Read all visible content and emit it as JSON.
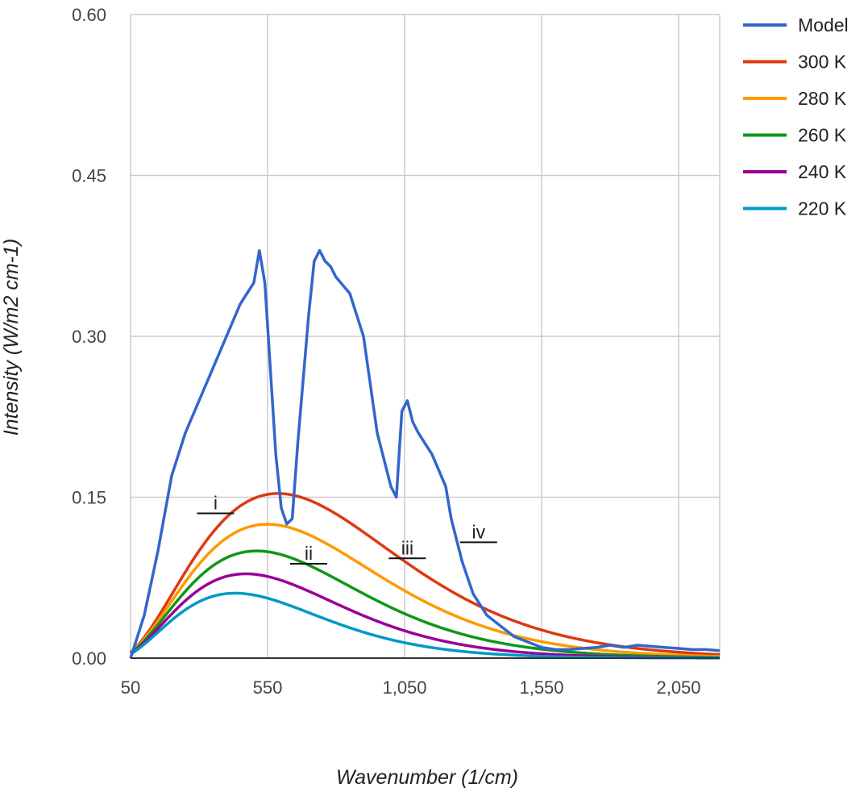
{
  "chart_data": {
    "type": "line",
    "title": "",
    "xlabel": "Wavenumber (1/cm)",
    "ylabel": "Intensity (W/m2 cm-1)",
    "xlim": [
      50,
      2200
    ],
    "ylim": [
      0,
      0.6
    ],
    "x_ticks": [
      "50",
      "550",
      "1,050",
      "1,550",
      "2,050"
    ],
    "y_ticks": [
      "0.00",
      "0.15",
      "0.30",
      "0.45",
      "0.60"
    ],
    "grid": true,
    "legend_position": "top-right",
    "series": [
      {
        "name": "Model",
        "color": "#3366cc",
        "kind": "spectrum",
        "x": [
          50,
          100,
          150,
          200,
          250,
          300,
          350,
          400,
          450,
          500,
          520,
          540,
          560,
          580,
          600,
          620,
          640,
          660,
          680,
          700,
          720,
          740,
          760,
          780,
          800,
          850,
          900,
          950,
          1000,
          1020,
          1040,
          1060,
          1080,
          1100,
          1150,
          1200,
          1220,
          1240,
          1260,
          1300,
          1350,
          1400,
          1450,
          1500,
          1550,
          1600,
          1650,
          1700,
          1750,
          1800,
          1850,
          1900,
          1950,
          2000,
          2050,
          2100,
          2150,
          2200
        ],
        "values": [
          0.0,
          0.04,
          0.1,
          0.17,
          0.21,
          0.24,
          0.27,
          0.3,
          0.33,
          0.35,
          0.38,
          0.35,
          0.27,
          0.19,
          0.14,
          0.125,
          0.13,
          0.2,
          0.26,
          0.32,
          0.37,
          0.38,
          0.37,
          0.365,
          0.355,
          0.34,
          0.3,
          0.21,
          0.16,
          0.15,
          0.23,
          0.24,
          0.22,
          0.21,
          0.19,
          0.16,
          0.13,
          0.11,
          0.09,
          0.06,
          0.04,
          0.03,
          0.02,
          0.015,
          0.01,
          0.008,
          0.008,
          0.009,
          0.01,
          0.012,
          0.01,
          0.012,
          0.011,
          0.01,
          0.009,
          0.008,
          0.008,
          0.007
        ]
      },
      {
        "name": "300 K",
        "color": "#dc3912",
        "kind": "planck",
        "temperature": 300
      },
      {
        "name": "280 K",
        "color": "#ff9900",
        "kind": "planck",
        "temperature": 280
      },
      {
        "name": "260 K",
        "color": "#109618",
        "kind": "planck",
        "temperature": 260
      },
      {
        "name": "240 K",
        "color": "#990099",
        "kind": "planck",
        "temperature": 240
      },
      {
        "name": "220 K",
        "color": "#0099c6",
        "kind": "planck",
        "temperature": 220
      }
    ],
    "annotations": [
      {
        "label": "i",
        "x": 360,
        "y": 0.135
      },
      {
        "label": "ii",
        "x": 700,
        "y": 0.088
      },
      {
        "label": "iii",
        "x": 1060,
        "y": 0.093
      },
      {
        "label": "iv",
        "x": 1320,
        "y": 0.108
      }
    ]
  }
}
